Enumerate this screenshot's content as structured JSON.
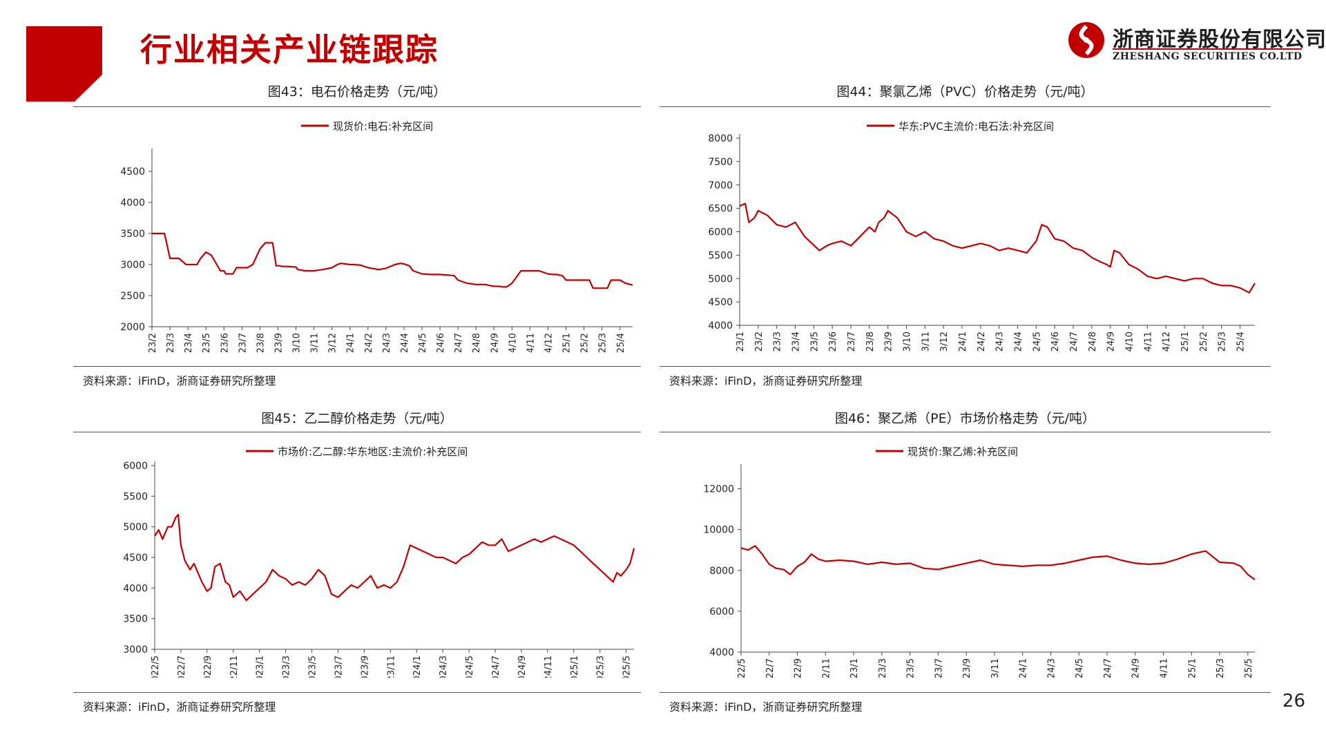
{
  "page": {
    "title": "行业相关产业链跟踪",
    "page_number": "26",
    "accent_color": "#c00000",
    "logo": {
      "cn": "浙商证券股份有限公司",
      "en": "ZHESHANG SECURITIES CO.LTD",
      "icon": "zheshang-logo-icon"
    }
  },
  "charts": [
    {
      "fig_title": "图43：电石价格走势（元/吨）",
      "source": "资料来源：iFinD，浙商证券研究所整理"
    },
    {
      "fig_title": "图44：聚氯乙烯（PVC）价格走势（元/吨）",
      "source": "资料来源：iFinD，浙商证券研究所整理"
    },
    {
      "fig_title": "图45：乙二醇价格走势（元/吨）",
      "source": "资料来源：iFinD，浙商证券研究所整理"
    },
    {
      "fig_title": "图46：聚乙烯（PE）市场价格走势（元/吨）",
      "source": "资料来源：iFinD，浙商证券研究所整理"
    }
  ],
  "chart_data": [
    {
      "type": "line",
      "title": "图43：电石价格走势（元/吨）",
      "legend": "现货价:电石:补充区间",
      "legend_position": "top",
      "color": "#c00000",
      "ylim": [
        2000,
        4800
      ],
      "yticks": [
        2000,
        2500,
        3000,
        3500,
        4000,
        4500
      ],
      "xlim": [
        0,
        26.7
      ],
      "xticks": [
        "2023/2",
        "2023/3",
        "2023/4",
        "2023/5",
        "2023/6",
        "2023/7",
        "2023/8",
        "2023/9",
        "2023/10",
        "2023/11",
        "2023/12",
        "2024/1",
        "2024/2",
        "2024/3",
        "2024/4",
        "2024/5",
        "2024/6",
        "2024/7",
        "2024/8",
        "2024/9",
        "2024/10",
        "2024/11",
        "2024/12",
        "2025/1",
        "2025/2",
        "2025/3",
        "2025/4"
      ],
      "x": [
        0,
        0.7,
        0.85,
        1.0,
        1.5,
        1.9,
        2.5,
        2.7,
        3.0,
        3.3,
        3.8,
        4.0,
        4.1,
        4.5,
        4.7,
        5.0,
        5.3,
        5.6,
        6.0,
        6.3,
        6.7,
        6.9,
        7.1,
        7.2,
        7.35,
        7.5,
        8.0,
        8.1,
        8.5,
        9.0,
        9.5,
        10.0,
        10.3,
        10.5,
        11.0,
        11.2,
        11.6,
        12.0,
        12.6,
        13.0,
        13.5,
        13.8,
        14.0,
        14.3,
        14.5,
        15.0,
        15.5,
        16.0,
        16.5,
        16.8,
        17.0,
        17.5,
        18.0,
        18.5,
        18.8,
        19.0,
        19.3,
        19.5,
        19.7,
        20.0,
        20.5,
        21.0,
        21.3,
        21.5,
        22.0,
        22.3,
        22.5,
        22.8,
        23.0,
        23.5,
        24.0,
        24.3,
        24.5,
        25.0,
        25.3,
        25.5,
        26.0,
        26.3,
        26.7
      ],
      "values": [
        3500,
        3500,
        3300,
        3100,
        3100,
        3000,
        3000,
        3100,
        3200,
        3150,
        2900,
        2900,
        2850,
        2850,
        2950,
        2950,
        2950,
        3000,
        3250,
        3350,
        3350,
        2980,
        2980,
        2970,
        2970,
        2970,
        2960,
        2920,
        2900,
        2900,
        2920,
        2950,
        3000,
        3020,
        3000,
        3000,
        2990,
        2950,
        2920,
        2940,
        3000,
        3020,
        3010,
        2980,
        2900,
        2850,
        2840,
        2840,
        2830,
        2820,
        2750,
        2700,
        2680,
        2680,
        2660,
        2650,
        2650,
        2640,
        2640,
        2700,
        2900,
        2900,
        2900,
        2900,
        2850,
        2840,
        2840,
        2820,
        2750,
        2750,
        2750,
        2750,
        2620,
        2620,
        2620,
        2750,
        2750,
        2700,
        2670
      ]
    },
    {
      "type": "line",
      "title": "图44：聚氯乙烯（PVC）价格走势（元/吨）",
      "legend": "华东:PVC主流价:电石法:补充区间",
      "legend_position": "top",
      "color": "#c00000",
      "ylim": [
        4000,
        8000
      ],
      "yticks": [
        4000,
        4500,
        5000,
        5500,
        6000,
        6500,
        7000,
        7500,
        8000
      ],
      "xlim": [
        0,
        27.8
      ],
      "xticks": [
        "2023/1",
        "2023/2",
        "2023/3",
        "2023/4",
        "2023/5",
        "2023/6",
        "2023/7",
        "2023/8",
        "2023/9",
        "2023/10",
        "2023/11",
        "2023/12",
        "2024/1",
        "2024/2",
        "2024/3",
        "2024/4",
        "2024/5",
        "2024/6",
        "2024/7",
        "2024/8",
        "2024/9",
        "2024/10",
        "2024/11",
        "2024/12",
        "2025/1",
        "2025/2",
        "2025/3",
        "2025/4"
      ],
      "x": [
        0,
        0.3,
        0.5,
        0.8,
        1.0,
        1.5,
        2.0,
        2.5,
        3.0,
        3.5,
        3.9,
        4.3,
        4.7,
        5.0,
        5.5,
        6.0,
        6.5,
        7.0,
        7.3,
        7.5,
        7.8,
        8.0,
        8.5,
        9.0,
        9.5,
        10.0,
        10.5,
        11.0,
        11.5,
        12.0,
        12.5,
        13.0,
        13.5,
        14.0,
        14.5,
        15.0,
        15.5,
        16.0,
        16.3,
        16.6,
        17.0,
        17.5,
        18.0,
        18.5,
        19.0,
        19.5,
        19.8,
        20.0,
        20.2,
        20.5,
        21.0,
        21.5,
        22.0,
        22.5,
        23.0,
        23.5,
        24.0,
        24.5,
        25.0,
        25.5,
        26.0,
        26.5,
        27.0,
        27.5,
        27.8
      ],
      "values": [
        6550,
        6600,
        6200,
        6300,
        6450,
        6350,
        6150,
        6100,
        6200,
        5900,
        5750,
        5600,
        5700,
        5750,
        5800,
        5700,
        5900,
        6100,
        6000,
        6200,
        6300,
        6450,
        6300,
        6000,
        5900,
        6000,
        5850,
        5800,
        5700,
        5650,
        5700,
        5750,
        5700,
        5600,
        5650,
        5600,
        5550,
        5800,
        6150,
        6100,
        5850,
        5800,
        5650,
        5600,
        5450,
        5350,
        5300,
        5250,
        5600,
        5550,
        5300,
        5200,
        5050,
        5000,
        5050,
        5000,
        4950,
        5000,
        5000,
        4900,
        4850,
        4850,
        4800,
        4700,
        4900
      ]
    },
    {
      "type": "line",
      "title": "图45：乙二醇价格走势（元/吨）",
      "legend": "市场价:乙二醇:华东地区:主流价:补充区间",
      "legend_position": "top",
      "color": "#c00000",
      "ylim": [
        3000,
        6000
      ],
      "yticks": [
        3000,
        3500,
        4000,
        4500,
        5000,
        5500,
        6000
      ],
      "xlim": [
        0,
        36.6
      ],
      "xticks": [
        "2022/5",
        "2022/7",
        "2022/9",
        "2022/11",
        "2023/1",
        "2023/3",
        "2023/5",
        "2023/7",
        "2023/9",
        "2023/11",
        "2024/1",
        "2024/3",
        "2024/5",
        "2024/7",
        "2024/9",
        "2024/11",
        "2025/1",
        "2025/3",
        "2025/5"
      ],
      "x": [
        0,
        0.3,
        0.6,
        1.0,
        1.3,
        1.6,
        1.8,
        2.0,
        2.3,
        2.7,
        3.0,
        3.3,
        3.6,
        4.0,
        4.3,
        4.6,
        5.0,
        5.4,
        5.7,
        6.0,
        6.5,
        7.0,
        7.5,
        8.0,
        8.5,
        9.0,
        9.5,
        10.0,
        10.5,
        11.0,
        11.5,
        12.0,
        12.5,
        13.0,
        13.5,
        14.0,
        14.5,
        15.0,
        15.5,
        16.0,
        16.5,
        17.0,
        17.5,
        18.0,
        18.5,
        19.0,
        19.5,
        20.0,
        20.5,
        21.0,
        21.5,
        22.0,
        22.5,
        23.0,
        23.5,
        24.0,
        24.5,
        25.0,
        25.5,
        26.0,
        26.5,
        27.0,
        27.5,
        28.0,
        28.5,
        29.0,
        29.5,
        30.0,
        30.5,
        31.0,
        31.5,
        32.0,
        32.5,
        33.0,
        33.5,
        34.0,
        34.5,
        35.0,
        35.3,
        35.6,
        36.0,
        36.3,
        36.6
      ],
      "values": [
        4850,
        4950,
        4800,
        5000,
        5000,
        5150,
        5200,
        4700,
        4450,
        4300,
        4400,
        4250,
        4100,
        3950,
        4000,
        4350,
        4400,
        4100,
        4050,
        3850,
        3950,
        3800,
        3900,
        4000,
        4100,
        4300,
        4200,
        4150,
        4050,
        4100,
        4050,
        4150,
        4300,
        4200,
        3900,
        3850,
        3950,
        4050,
        4000,
        4100,
        4200,
        4000,
        4050,
        4000,
        4100,
        4350,
        4700,
        4650,
        4600,
        4550,
        4500,
        4500,
        4450,
        4400,
        4500,
        4550,
        4650,
        4750,
        4700,
        4700,
        4800,
        4600,
        4650,
        4700,
        4750,
        4800,
        4750,
        4800,
        4850,
        4800,
        4750,
        4700,
        4600,
        4500,
        4400,
        4300,
        4200,
        4100,
        4250,
        4200,
        4300,
        4400,
        4650
      ]
    },
    {
      "type": "line",
      "title": "图46：聚乙烯（PE）市场价格走势（元/吨）",
      "legend": "现货价:聚乙烯:补充区间",
      "legend_position": "top",
      "color": "#c00000",
      "ylim": [
        4000,
        13000
      ],
      "yticks": [
        4000,
        6000,
        8000,
        10000,
        12000
      ],
      "xlim": [
        0,
        36.5
      ],
      "xticks": [
        "2022/5",
        "2022/7",
        "2022/9",
        "2022/11",
        "2023/1",
        "2023/3",
        "2023/5",
        "2023/7",
        "2023/9",
        "2023/11",
        "2024/1",
        "2024/3",
        "2024/5",
        "2024/7",
        "2024/9",
        "2024/11",
        "2025/1",
        "2025/3",
        "2025/5"
      ],
      "x": [
        0,
        0.5,
        1.0,
        1.5,
        2.0,
        2.5,
        3.0,
        3.5,
        4.0,
        4.5,
        5.0,
        5.5,
        6.0,
        7.0,
        8.0,
        9.0,
        10.0,
        11.0,
        12.0,
        13.0,
        14.0,
        15.0,
        16.0,
        17.0,
        18.0,
        19.0,
        20.0,
        21.0,
        22.0,
        23.0,
        24.0,
        25.0,
        26.0,
        27.0,
        28.0,
        29.0,
        30.0,
        31.0,
        32.0,
        33.0,
        34.0,
        35.0,
        35.5,
        36.0,
        36.5
      ],
      "values": [
        9100,
        9000,
        9200,
        8800,
        8300,
        8100,
        8050,
        7800,
        8200,
        8400,
        8800,
        8550,
        8450,
        8500,
        8450,
        8300,
        8400,
        8300,
        8350,
        8100,
        8050,
        8200,
        8350,
        8500,
        8300,
        8250,
        8200,
        8250,
        8250,
        8350,
        8500,
        8650,
        8700,
        8500,
        8350,
        8300,
        8350,
        8550,
        8800,
        8950,
        8400,
        8350,
        8200,
        7800,
        7550
      ]
    }
  ]
}
